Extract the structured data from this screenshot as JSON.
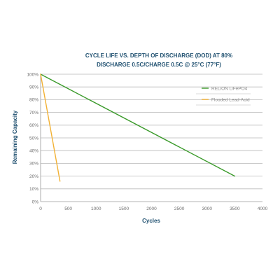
{
  "chart_data": {
    "type": "line",
    "title": [
      "CYCLE LIFE VS. DEPTH OF DISCHARGE (DOD) AT 80%",
      "DISCHARGE 0.5C/CHARGE 0.5C @ 25°C (77°F)"
    ],
    "xlabel": "Cycles",
    "ylabel": "Remaining Capacity",
    "xlim": [
      0,
      4000
    ],
    "ylim": [
      0,
      100
    ],
    "x_ticks": [
      "0",
      "500",
      "1000",
      "1500",
      "2000",
      "2500",
      "3000",
      "3500",
      "4000"
    ],
    "y_ticks": [
      "0%",
      "10%",
      "20%",
      "30%",
      "40%",
      "50%",
      "60%",
      "70%",
      "80%",
      "90%",
      "100%"
    ],
    "grid": "horizontal",
    "legend_position": "top-right",
    "series": [
      {
        "name": "RELiON LiFePO4",
        "color": "#3a9a2a",
        "x": [
          0,
          3500
        ],
        "y": [
          100,
          20
        ]
      },
      {
        "name": "Flooded Lead-Acid",
        "color": "#f2b134",
        "x": [
          0,
          350
        ],
        "y": [
          100,
          16
        ]
      }
    ]
  }
}
